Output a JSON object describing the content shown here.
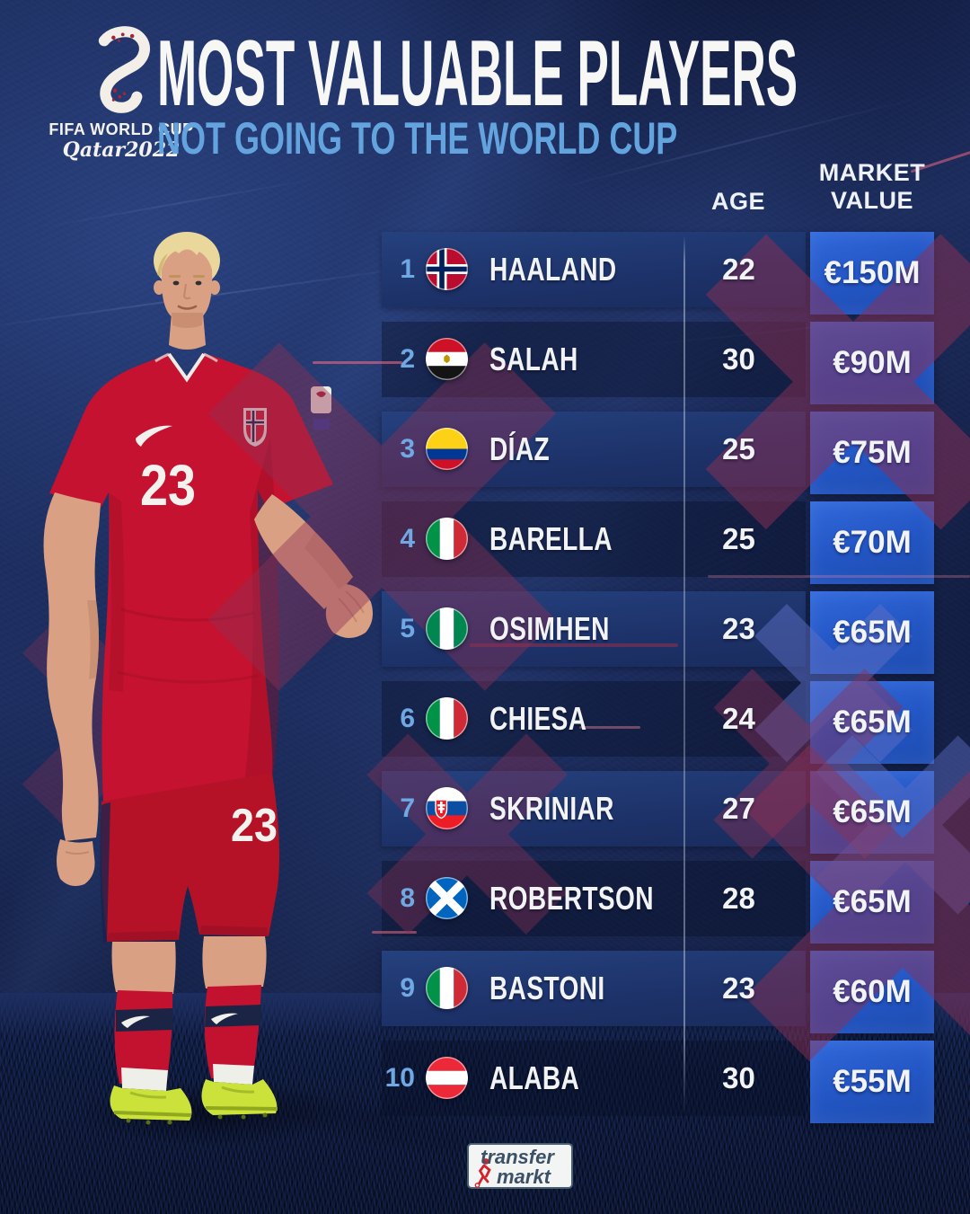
{
  "event_badge": {
    "line1": "FIFA WORLD CUP",
    "line2": "Qatar2022"
  },
  "header": {
    "title": "MOST VALUABLE PLAYERS",
    "subtitle": "NOT GOING TO THE WORLD CUP"
  },
  "columns": {
    "age": "AGE",
    "market_value_line1": "MARKET",
    "market_value_line2": "VALUE"
  },
  "players": [
    {
      "rank": "1",
      "flag": "norway",
      "name": "HAALAND",
      "age": "22",
      "value": "€150M"
    },
    {
      "rank": "2",
      "flag": "egypt",
      "name": "SALAH",
      "age": "30",
      "value": "€90M"
    },
    {
      "rank": "3",
      "flag": "colombia",
      "name": "DÍAZ",
      "age": "25",
      "value": "€75M"
    },
    {
      "rank": "4",
      "flag": "italy",
      "name": "BARELLA",
      "age": "25",
      "value": "€70M"
    },
    {
      "rank": "5",
      "flag": "nigeria",
      "name": "OSIMHEN",
      "age": "23",
      "value": "€65M"
    },
    {
      "rank": "6",
      "flag": "italy",
      "name": "CHIESA",
      "age": "24",
      "value": "€65M"
    },
    {
      "rank": "7",
      "flag": "slovakia",
      "name": "SKRINIAR",
      "age": "27",
      "value": "€65M"
    },
    {
      "rank": "8",
      "flag": "scotland",
      "name": "ROBERTSON",
      "age": "28",
      "value": "€65M"
    },
    {
      "rank": "9",
      "flag": "italy",
      "name": "BASTONI",
      "age": "23",
      "value": "€60M"
    },
    {
      "rank": "10",
      "flag": "austria",
      "name": "ALABA",
      "age": "30",
      "value": "€55M"
    }
  ],
  "photo": {
    "subject": "footballer in red Norway kit",
    "shirt_number": "23",
    "shorts_number": "23"
  },
  "footer": {
    "brand_line1": "transfer",
    "brand_line2": "markt"
  },
  "colors": {
    "market_cell_blue": "#2a5ece",
    "row_navy": "#20386f",
    "subtitle_blue": "#64a4de",
    "rank_blue": "#6fa8e2",
    "x_maroon": "#8e3054",
    "x_periwinkle": "#5d6fc5",
    "kit_red": "#c51230"
  },
  "chart_data": {
    "type": "table",
    "title": "MOST VALUABLE PLAYERS",
    "subtitle": "NOT GOING TO THE WORLD CUP",
    "columns": [
      "Rank",
      "Nationality",
      "Player",
      "Age",
      "Market Value"
    ],
    "rows": [
      [
        1,
        "Norway",
        "HAALAND",
        22,
        "€150M"
      ],
      [
        2,
        "Egypt",
        "SALAH",
        30,
        "€90M"
      ],
      [
        3,
        "Colombia",
        "DÍAZ",
        25,
        "€75M"
      ],
      [
        4,
        "Italy",
        "BARELLA",
        25,
        "€70M"
      ],
      [
        5,
        "Nigeria",
        "OSIMHEN",
        23,
        "€65M"
      ],
      [
        6,
        "Italy",
        "CHIESA",
        24,
        "€65M"
      ],
      [
        7,
        "Slovakia",
        "SKRINIAR",
        27,
        "€65M"
      ],
      [
        8,
        "Scotland",
        "ROBERTSON",
        28,
        "€65M"
      ],
      [
        9,
        "Italy",
        "BASTONI",
        23,
        "€60M"
      ],
      [
        10,
        "Austria",
        "ALABA",
        30,
        "€55M"
      ]
    ],
    "source_brand": "transfermarkt"
  }
}
